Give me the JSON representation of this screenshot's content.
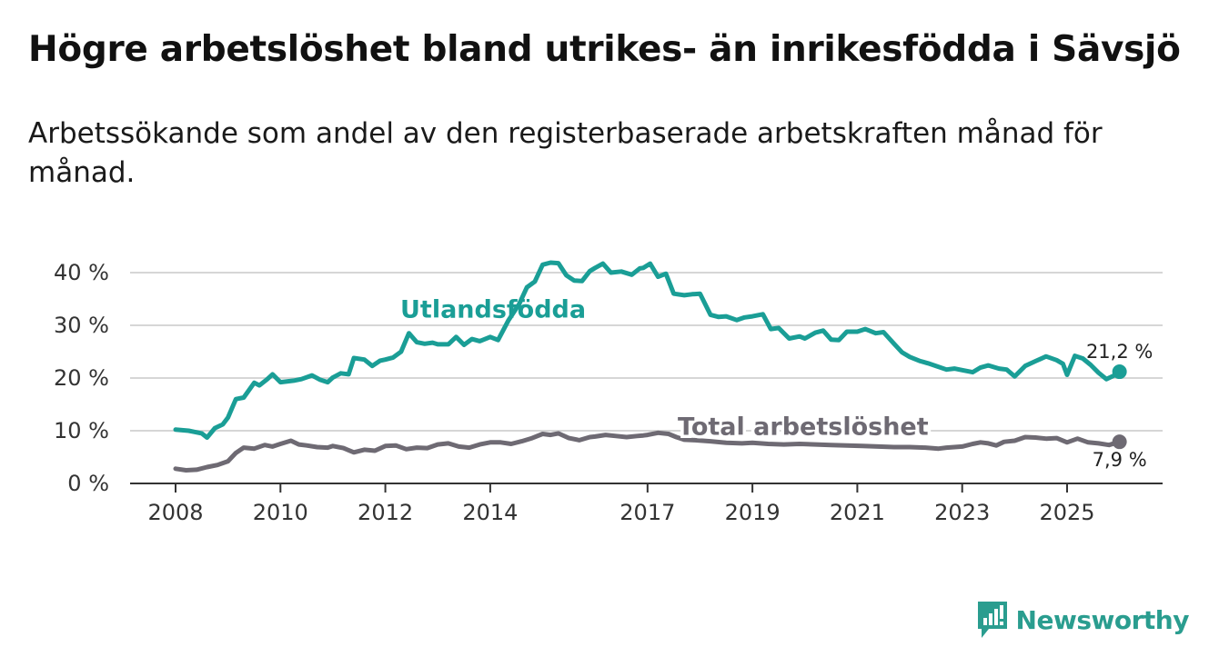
{
  "title": "Högre arbetslöshet bland utrikes- än inrikesfödda i Sävsjö",
  "subtitle": "Arbetssökande som andel av den registerbaserade arbetskraften månad för månad.",
  "brand": {
    "name": "Newsworthy",
    "icon": "newsworthy-logo-icon",
    "color": "#2a9d8f"
  },
  "chart_data": {
    "type": "line",
    "title": "Högre arbetslöshet bland utrikes- än inrikesfödda i Sävsjö",
    "xlabel": "",
    "ylabel": "",
    "x_ticks": [
      "2008",
      "2010",
      "2012",
      "2014",
      "2017",
      "2019",
      "2021",
      "2023",
      "2025"
    ],
    "x_tick_values": [
      2008,
      2010,
      2012,
      2014,
      2017,
      2019,
      2021,
      2023,
      2025
    ],
    "xlim": [
      2008,
      2026
    ],
    "y_ticks": [
      "0 %",
      "10 %",
      "20 %",
      "30 %",
      "40 %"
    ],
    "y_tick_values": [
      0,
      10,
      20,
      30,
      40
    ],
    "ylim": [
      0,
      40
    ],
    "grid": true,
    "series": [
      {
        "name": "Utlandsfödda",
        "color": "#1a9e96",
        "end_label": "21,2 %",
        "x": [
          2008.0,
          2008.25,
          2008.35,
          2008.5,
          2008.6,
          2008.75,
          2008.9,
          2009.0,
          2009.15,
          2009.3,
          2009.5,
          2009.6,
          2009.75,
          2009.85,
          2010.0,
          2010.25,
          2010.4,
          2010.6,
          2010.75,
          2010.9,
          2011.0,
          2011.15,
          2011.3,
          2011.4,
          2011.6,
          2011.75,
          2011.9,
          2012.0,
          2012.15,
          2012.3,
          2012.45,
          2012.6,
          2012.75,
          2012.9,
          2013.0,
          2013.2,
          2013.35,
          2013.5,
          2013.65,
          2013.8,
          2014.0,
          2014.15,
          2014.35,
          2014.55,
          2014.7,
          2014.85,
          2015.0,
          2015.15,
          2015.3,
          2015.45,
          2015.6,
          2015.75,
          2015.9,
          2016.0,
          2016.15,
          2016.3,
          2016.5,
          2016.7,
          2016.85,
          2016.92,
          2017.05,
          2017.2,
          2017.35,
          2017.5,
          2017.7,
          2017.85,
          2018.0,
          2018.2,
          2018.35,
          2018.5,
          2018.7,
          2018.85,
          2019.0,
          2019.2,
          2019.35,
          2019.5,
          2019.7,
          2019.9,
          2020.0,
          2020.2,
          2020.35,
          2020.5,
          2020.65,
          2020.8,
          2021.0,
          2021.15,
          2021.35,
          2021.5,
          2021.7,
          2021.85,
          2022.0,
          2022.2,
          2022.35,
          2022.5,
          2022.7,
          2022.85,
          2023.0,
          2023.2,
          2023.35,
          2023.5,
          2023.7,
          2023.85,
          2024.0,
          2024.2,
          2024.4,
          2024.6,
          2024.8,
          2024.92,
          2025.0,
          2025.15,
          2025.3,
          2025.45,
          2025.6,
          2025.75,
          2025.9,
          2026.0
        ],
        "values": [
          10.2,
          10.0,
          9.8,
          9.5,
          8.7,
          10.5,
          11.2,
          12.5,
          16.0,
          16.3,
          19.1,
          18.6,
          19.8,
          20.7,
          19.2,
          19.5,
          19.8,
          20.5,
          19.7,
          19.2,
          20.1,
          20.9,
          20.7,
          23.8,
          23.5,
          22.3,
          23.3,
          23.5,
          23.9,
          25.0,
          28.5,
          26.8,
          26.5,
          26.7,
          26.4,
          26.4,
          27.8,
          26.3,
          27.4,
          27.0,
          27.8,
          27.2,
          31.0,
          34.0,
          37.2,
          38.3,
          41.5,
          41.9,
          41.8,
          39.5,
          38.5,
          38.4,
          40.3,
          40.9,
          41.7,
          40.0,
          40.2,
          39.6,
          40.8,
          40.9,
          41.7,
          39.2,
          39.8,
          36.0,
          35.7,
          35.9,
          36.0,
          32.0,
          31.6,
          31.7,
          31.0,
          31.5,
          31.7,
          32.1,
          29.3,
          29.5,
          27.5,
          27.9,
          27.5,
          28.6,
          29.0,
          27.3,
          27.2,
          28.8,
          28.8,
          29.3,
          28.5,
          28.7,
          26.5,
          24.9,
          24.0,
          23.2,
          22.8,
          22.3,
          21.6,
          21.8,
          21.5,
          21.1,
          22.0,
          22.4,
          21.8,
          21.6,
          20.3,
          22.3,
          23.2,
          24.1,
          23.4,
          22.7,
          20.6,
          24.2,
          23.7,
          22.5,
          21.0,
          19.8,
          20.5,
          21.2
        ]
      },
      {
        "name": "Total arbetslöshet",
        "color": "#6e6a73",
        "end_label": "7,9 %",
        "x": [
          2008.0,
          2008.2,
          2008.4,
          2008.6,
          2008.8,
          2009.0,
          2009.15,
          2009.3,
          2009.5,
          2009.7,
          2009.85,
          2010.0,
          2010.2,
          2010.35,
          2010.5,
          2010.7,
          2010.9,
          2011.0,
          2011.2,
          2011.4,
          2011.6,
          2011.8,
          2012.0,
          2012.2,
          2012.4,
          2012.6,
          2012.8,
          2013.0,
          2013.2,
          2013.4,
          2013.6,
          2013.8,
          2014.0,
          2014.2,
          2014.4,
          2014.6,
          2014.8,
          2015.0,
          2015.15,
          2015.3,
          2015.5,
          2015.7,
          2015.9,
          2016.0,
          2016.2,
          2016.4,
          2016.6,
          2016.8,
          2016.92,
          2017.0,
          2017.2,
          2017.4,
          2017.55,
          2017.7,
          2017.9,
          2018.2,
          2018.5,
          2018.8,
          2019.0,
          2019.3,
          2019.6,
          2019.9,
          2020.2,
          2020.5,
          2020.8,
          2021.1,
          2021.4,
          2021.7,
          2022.0,
          2022.3,
          2022.55,
          2022.7,
          2022.85,
          2023.0,
          2023.2,
          2023.35,
          2023.5,
          2023.65,
          2023.8,
          2024.0,
          2024.2,
          2024.4,
          2024.6,
          2024.8,
          2025.0,
          2025.2,
          2025.4,
          2025.6,
          2025.8,
          2026.0
        ],
        "values": [
          2.8,
          2.5,
          2.6,
          3.1,
          3.5,
          4.2,
          5.8,
          6.8,
          6.6,
          7.3,
          7.0,
          7.5,
          8.1,
          7.4,
          7.2,
          6.9,
          6.8,
          7.1,
          6.7,
          5.9,
          6.4,
          6.2,
          7.1,
          7.2,
          6.5,
          6.8,
          6.7,
          7.4,
          7.6,
          7.0,
          6.8,
          7.4,
          7.8,
          7.8,
          7.5,
          8.0,
          8.6,
          9.4,
          9.2,
          9.5,
          8.6,
          8.2,
          8.8,
          8.9,
          9.2,
          9.0,
          8.8,
          9.0,
          9.1,
          9.2,
          9.6,
          9.4,
          8.8,
          8.3,
          8.2,
          8.0,
          7.7,
          7.6,
          7.7,
          7.5,
          7.4,
          7.5,
          7.4,
          7.3,
          7.2,
          7.1,
          7.0,
          6.9,
          6.9,
          6.8,
          6.6,
          6.8,
          6.9,
          7.0,
          7.5,
          7.8,
          7.6,
          7.2,
          7.9,
          8.1,
          8.8,
          8.7,
          8.5,
          8.6,
          7.8,
          8.5,
          7.8,
          7.6,
          7.3,
          7.9
        ]
      }
    ]
  }
}
